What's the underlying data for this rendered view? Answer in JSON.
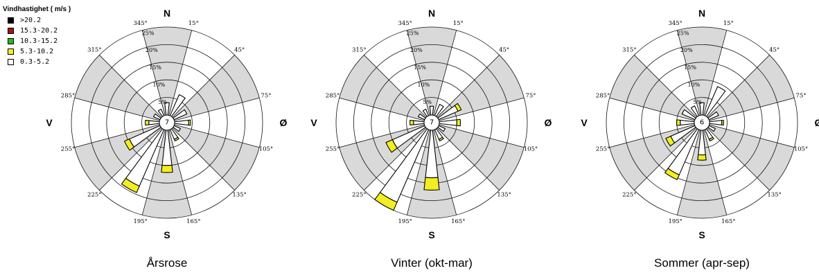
{
  "legend": {
    "title": "Vindhastighet ( m/s )",
    "items": [
      {
        "label": ">20.2",
        "color": "#000000"
      },
      {
        "label": "15.3-20.2",
        "color": "#a31515"
      },
      {
        "label": "10.3-15.2",
        "color": "#22bb22"
      },
      {
        "label": "5.3-10.2",
        "color": "#f2ee22"
      },
      {
        "label": "0.3-5.2",
        "color": "#ffffff"
      }
    ]
  },
  "cardinals": {
    "n": "N",
    "e": "Ø",
    "s": "S",
    "w": "V"
  },
  "direction_labels": [
    "15°",
    "45°",
    "75°",
    "105°",
    "135°",
    "165°",
    "195°",
    "225°",
    "255°",
    "285°",
    "315°",
    "345°"
  ],
  "ring_labels": [
    "5%",
    "10%",
    "15%",
    "20%",
    "25%"
  ],
  "chart_data": [
    {
      "type": "wind-rose",
      "caption": "Årsrose",
      "center_label": "7",
      "sectors_deg": [
        0,
        30,
        60,
        90,
        120,
        150,
        180,
        210,
        240,
        270,
        300,
        330
      ],
      "speed_bins": [
        "0.3-5.2",
        "5.3-10.2"
      ],
      "values_pct": {
        "0.3-5.2": [
          3.5,
          6.5,
          4.0,
          4.0,
          2.0,
          3.0,
          10.0,
          17.5,
          9.5,
          3.0,
          2.0,
          2.0
        ],
        "5.3-10.2": [
          0,
          0,
          0,
          0.5,
          0,
          0.5,
          2.0,
          2.0,
          1.5,
          1.0,
          0,
          0
        ]
      },
      "rlim": [
        0,
        28
      ]
    },
    {
      "type": "wind-rose",
      "caption": "Vinter (okt-mar)",
      "center_label": "7",
      "sectors_deg": [
        0,
        30,
        60,
        90,
        120,
        150,
        180,
        210,
        240,
        270,
        300,
        330
      ],
      "speed_bins": [
        "0.3-5.2",
        "5.3-10.2"
      ],
      "values_pct": {
        "0.3-5.2": [
          2.5,
          3.5,
          6.0,
          5.0,
          2.0,
          3.0,
          13.5,
          22.5,
          10.0,
          3.0,
          2.0,
          2.0
        ],
        "5.3-10.2": [
          0,
          0,
          1.0,
          1.0,
          0,
          0.5,
          3.5,
          2.5,
          2.0,
          1.0,
          0,
          0
        ]
      },
      "rlim": [
        0,
        28
      ]
    },
    {
      "type": "wind-rose",
      "caption": "Sommer (apr-sep)",
      "center_label": "6",
      "sectors_deg": [
        0,
        30,
        60,
        90,
        120,
        150,
        180,
        210,
        240,
        270,
        300,
        330
      ],
      "speed_bins": [
        "0.3-5.2",
        "5.3-10.2"
      ],
      "values_pct": {
        "0.3-5.2": [
          3.5,
          9.0,
          3.0,
          3.5,
          2.0,
          3.0,
          7.0,
          14.0,
          7.5,
          4.0,
          4.0,
          3.0
        ],
        "5.3-10.2": [
          0,
          0,
          0,
          0.5,
          0,
          0.5,
          1.5,
          1.5,
          1.5,
          1.0,
          0,
          0
        ]
      },
      "rlim": [
        0,
        28
      ]
    }
  ]
}
